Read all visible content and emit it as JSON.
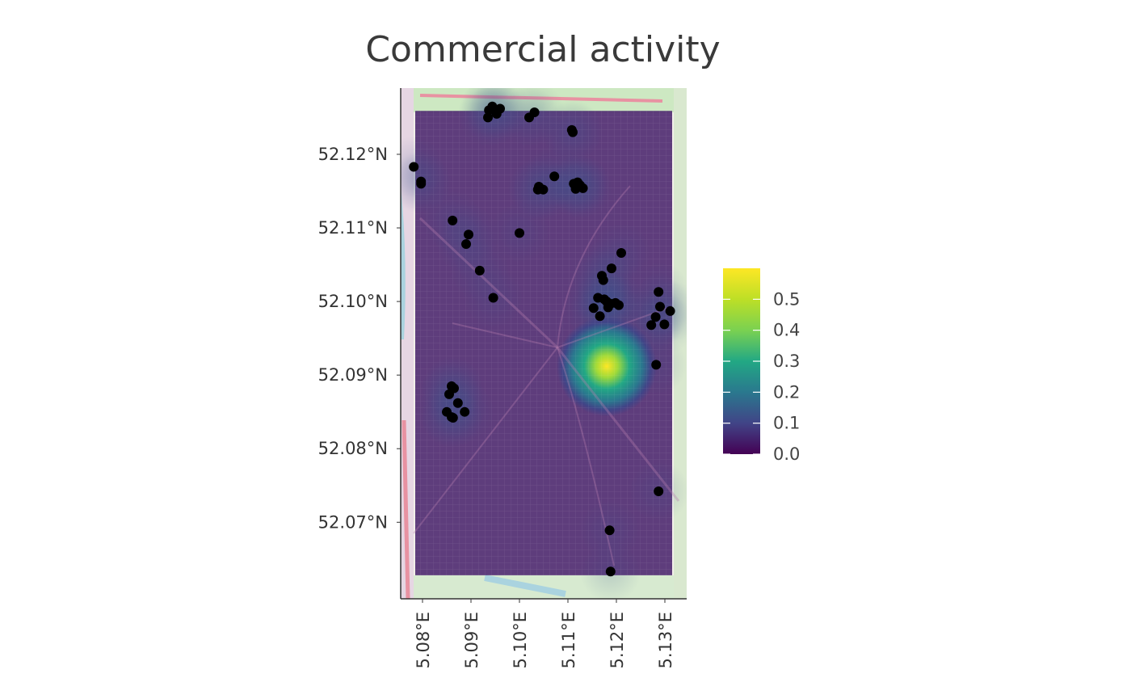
{
  "title": "Commercial activity",
  "chart_data": {
    "type": "heatmap",
    "title": "Commercial activity",
    "x_axis": {
      "range": [
        5.0755,
        5.1345
      ],
      "tick_values": [
        5.08,
        5.09,
        5.1,
        5.11,
        5.12,
        5.13
      ],
      "tick_labels": [
        "5.08°E",
        "5.09°E",
        "5.10°E",
        "5.11°E",
        "5.12°E",
        "5.13°E"
      ]
    },
    "y_axis": {
      "range": [
        52.0596,
        52.129
      ],
      "tick_values": [
        52.07,
        52.08,
        52.09,
        52.1,
        52.11,
        52.12
      ],
      "tick_labels": [
        "52.07°N",
        "52.08°N",
        "52.09°N",
        "52.10°N",
        "52.11°N",
        "52.12°N"
      ]
    },
    "raster_extent": {
      "x": [
        5.0785,
        5.1315
      ],
      "y": [
        52.0628,
        52.1259
      ]
    },
    "density_peak": {
      "x": 5.118,
      "y": 52.0912,
      "value": 0.58
    },
    "legend": {
      "position": "right",
      "range": [
        0.0,
        0.6
      ],
      "tick_values": [
        0.0,
        0.1,
        0.2,
        0.3,
        0.4,
        0.5
      ],
      "tick_labels": [
        "0.0",
        "0.1",
        "0.2",
        "0.3",
        "0.4",
        "0.5"
      ],
      "colors": [
        "#440154",
        "#414487",
        "#2a788e",
        "#22a884",
        "#7ad151",
        "#fde725"
      ]
    },
    "points": [
      [
        5.0937,
        52.126
      ],
      [
        5.0944,
        52.1265
      ],
      [
        5.0953,
        52.1255
      ],
      [
        5.0935,
        52.125
      ],
      [
        5.096,
        52.1262
      ],
      [
        5.102,
        52.125
      ],
      [
        5.1031,
        52.1257
      ],
      [
        5.1108,
        52.1233
      ],
      [
        5.111,
        52.123
      ],
      [
        5.0782,
        52.1183
      ],
      [
        5.0797,
        52.1163
      ],
      [
        5.0797,
        52.116
      ],
      [
        5.1072,
        52.117
      ],
      [
        5.104,
        52.1156
      ],
      [
        5.1049,
        52.1152
      ],
      [
        5.1038,
        52.1152
      ],
      [
        5.1112,
        52.116
      ],
      [
        5.112,
        52.1162
      ],
      [
        5.1125,
        52.1158
      ],
      [
        5.1116,
        52.1153
      ],
      [
        5.1131,
        52.1154
      ],
      [
        5.0862,
        52.111
      ],
      [
        5.0895,
        52.1091
      ],
      [
        5.089,
        52.1078
      ],
      [
        5.1,
        52.1093
      ],
      [
        5.0918,
        52.1042
      ],
      [
        5.0946,
        52.1005
      ],
      [
        5.121,
        52.1066
      ],
      [
        5.119,
        52.1045
      ],
      [
        5.117,
        52.1035
      ],
      [
        5.1173,
        52.1029
      ],
      [
        5.1153,
        52.0991
      ],
      [
        5.1162,
        52.1005
      ],
      [
        5.1175,
        52.1003
      ],
      [
        5.1188,
        52.0997
      ],
      [
        5.1198,
        52.0998
      ],
      [
        5.1205,
        52.0995
      ],
      [
        5.1183,
        52.0992
      ],
      [
        5.1166,
        52.098
      ],
      [
        5.118,
        52.1
      ],
      [
        5.1287,
        52.1013
      ],
      [
        5.129,
        52.0993
      ],
      [
        5.1281,
        52.0979
      ],
      [
        5.1272,
        52.0968
      ],
      [
        5.1299,
        52.0969
      ],
      [
        5.1311,
        52.0987
      ],
      [
        5.1282,
        52.0914
      ],
      [
        5.086,
        52.0885
      ],
      [
        5.0855,
        52.0874
      ],
      [
        5.0865,
        52.0882
      ],
      [
        5.0873,
        52.0862
      ],
      [
        5.085,
        52.085
      ],
      [
        5.0863,
        52.0842
      ],
      [
        5.086,
        52.0843
      ],
      [
        5.0887,
        52.085
      ],
      [
        5.1287,
        52.0742
      ],
      [
        5.1186,
        52.0689
      ],
      [
        5.1188,
        52.0633
      ]
    ]
  }
}
